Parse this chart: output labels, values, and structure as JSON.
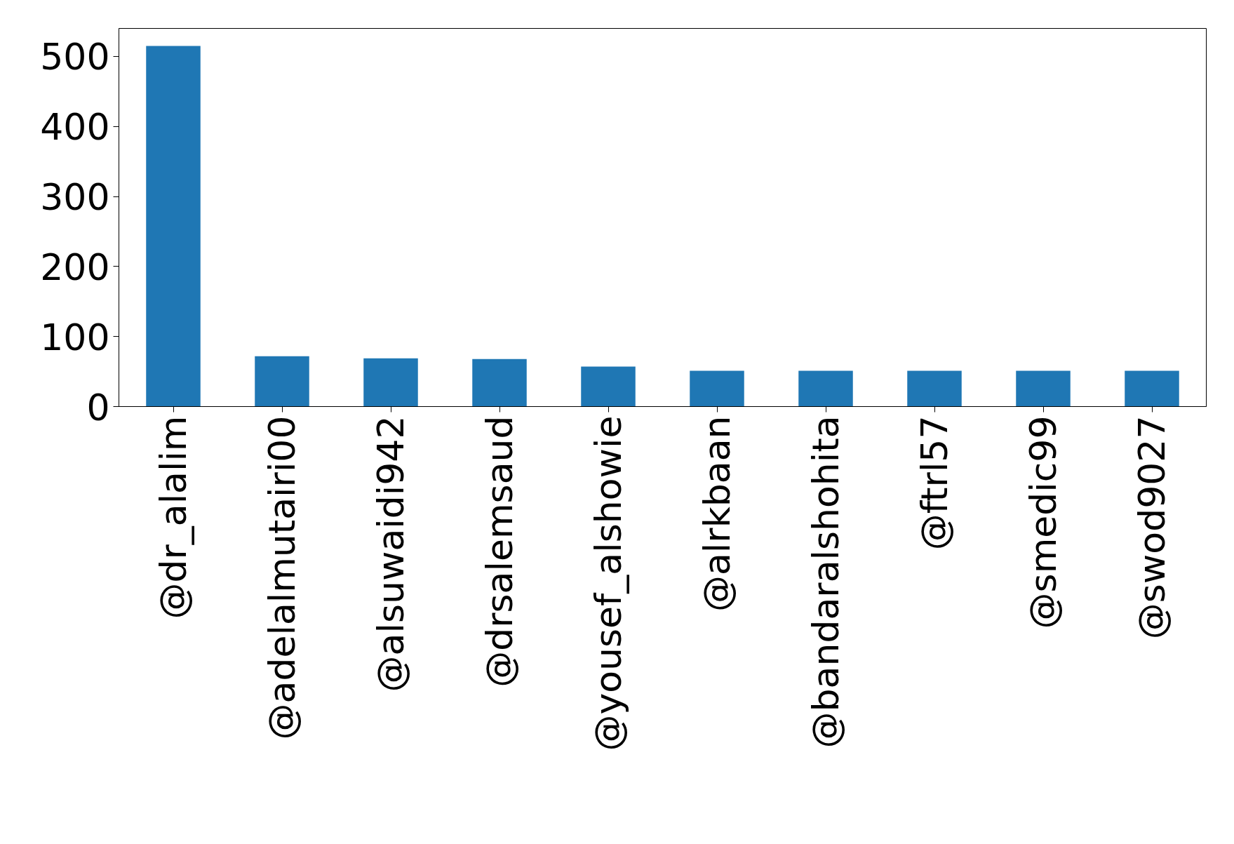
{
  "chart_data": {
    "type": "bar",
    "categories": [
      "@dr_alalim",
      "@adelalmutairi00",
      "@alsuwaidi942",
      "@drsalemsaud",
      "@yousef_alshowie",
      "@alrkbaan",
      "@bandaralshohita",
      "@ftrl57",
      "@smedic99",
      "@swod9027"
    ],
    "values": [
      515,
      72,
      69,
      68,
      57,
      51,
      51,
      51,
      51,
      51
    ],
    "color": "#1f77b4",
    "ylim": [
      0,
      540
    ],
    "yticks": [
      0,
      100,
      200,
      300,
      400,
      500
    ],
    "grid": false
  }
}
